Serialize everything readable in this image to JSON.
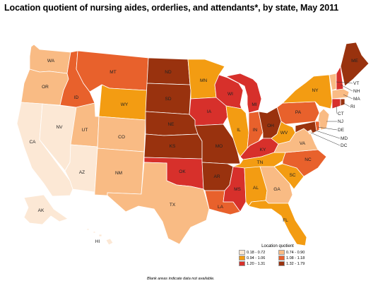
{
  "title": "Location quotient of nursing aides, orderlies, and attendants*, by state, May 2011",
  "legend": {
    "title": "Location quotient",
    "classes": [
      {
        "range": "0.18 - 0.72",
        "color": "#fce8d5"
      },
      {
        "range": "0.74 - 0.90",
        "color": "#f9bb84"
      },
      {
        "range": "0.94 - 1.06",
        "color": "#f39c12"
      },
      {
        "range": "1.08 - 1.18",
        "color": "#e8612c"
      },
      {
        "range": "1.20 - 1.31",
        "color": "#d7302b"
      },
      {
        "range": "1.32 - 1.79",
        "color": "#99320e"
      }
    ]
  },
  "note": "Blank areas indicate data not available.",
  "states": {
    "WA": {
      "label": "WA",
      "class": 1
    },
    "OR": {
      "label": "OR",
      "class": 1
    },
    "CA": {
      "label": "CA",
      "class": 0
    },
    "NV": {
      "label": "NV",
      "class": 0
    },
    "ID": {
      "label": "ID",
      "class": 3
    },
    "MT": {
      "label": "MT",
      "class": 3
    },
    "WY": {
      "label": "WY",
      "class": 2
    },
    "UT": {
      "label": "UT",
      "class": 1
    },
    "AZ": {
      "label": "AZ",
      "class": 0
    },
    "CO": {
      "label": "CO",
      "class": 1
    },
    "NM": {
      "label": "NM",
      "class": 1
    },
    "ND": {
      "label": "ND",
      "class": 5
    },
    "SD": {
      "label": "SD",
      "class": 5
    },
    "NE": {
      "label": "NE",
      "class": 5
    },
    "KS": {
      "label": "KS",
      "class": 5
    },
    "OK": {
      "label": "OK",
      "class": 4
    },
    "TX": {
      "label": "TX",
      "class": 1
    },
    "MN": {
      "label": "MN",
      "class": 2
    },
    "IA": {
      "label": "IA",
      "class": 4
    },
    "MO": {
      "label": "MO",
      "class": 5
    },
    "AR": {
      "label": "AR",
      "class": 5
    },
    "LA": {
      "label": "LA",
      "class": 3
    },
    "WI": {
      "label": "WI",
      "class": 4
    },
    "IL": {
      "label": "IL",
      "class": 2
    },
    "MI": {
      "label": "MI",
      "class": 4
    },
    "IN": {
      "label": "IN",
      "class": 3
    },
    "OH": {
      "label": "OH",
      "class": 5
    },
    "KY": {
      "label": "KY",
      "class": 4
    },
    "TN": {
      "label": "TN",
      "class": 2
    },
    "MS": {
      "label": "MS",
      "class": 4
    },
    "AL": {
      "label": "AL",
      "class": 2
    },
    "GA": {
      "label": "GA",
      "class": 1
    },
    "FL": {
      "label": "FL",
      "class": 2
    },
    "SC": {
      "label": "SC",
      "class": 2
    },
    "NC": {
      "label": "NC",
      "class": 3
    },
    "VA": {
      "label": "VA",
      "class": 1
    },
    "WV": {
      "label": "WV",
      "class": 2
    },
    "PA": {
      "label": "PA",
      "class": 3
    },
    "NY": {
      "label": "NY",
      "class": 2
    },
    "ME": {
      "label": "ME",
      "class": 5
    },
    "VT": {
      "label": "VT",
      "class": 1
    },
    "NH": {
      "label": "NH",
      "class": 4
    },
    "MA": {
      "label": "MA",
      "class": 1
    },
    "RI": {
      "label": "RI",
      "class": 5
    },
    "CT": {
      "label": "CT",
      "class": 4
    },
    "NJ": {
      "label": "NJ",
      "class": 1
    },
    "DE": {
      "label": "DE",
      "class": 3
    },
    "MD": {
      "label": "MD",
      "class": 5
    },
    "DC": {
      "label": "DC",
      "class": 0
    },
    "AK": {
      "label": "AK",
      "class": 0
    },
    "HI": {
      "label": "HI",
      "class": 0
    }
  }
}
